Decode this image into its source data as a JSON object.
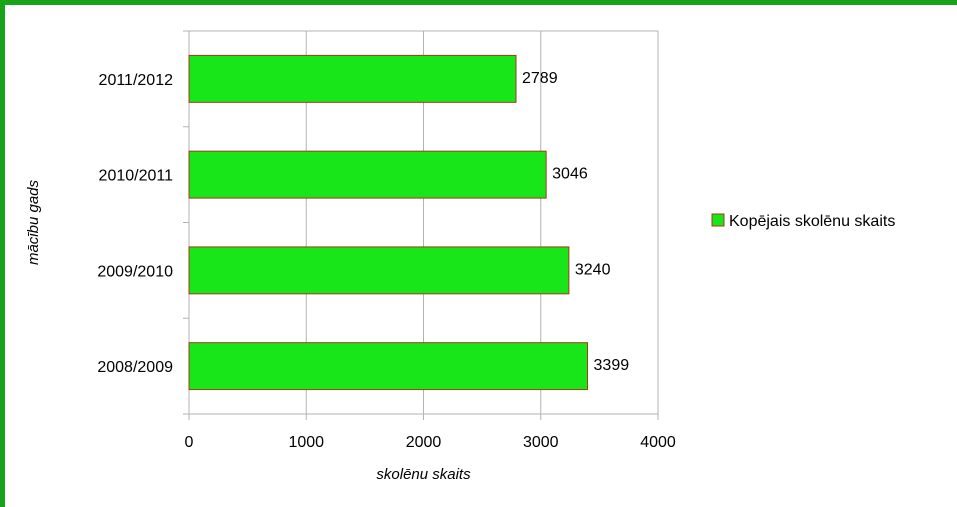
{
  "chart_data": {
    "type": "bar",
    "orientation": "horizontal",
    "categories": [
      "2011/2012",
      "2010/2011",
      "2009/2010",
      "2008/2009"
    ],
    "series": [
      {
        "name": "Kopējais skolēnu skaits",
        "values": [
          2789,
          3046,
          3240,
          3399
        ]
      }
    ],
    "xlabel": "skolēnu skaits",
    "ylabel": "mācību gads",
    "xlim": [
      0,
      4000
    ],
    "xticks": [
      0,
      1000,
      2000,
      3000,
      4000
    ],
    "grid": true,
    "legend": "right",
    "colors": {
      "bar": "#19e619",
      "bar_border": "#a33a1a",
      "frame": "#19a319",
      "grid": "#b3b3b3",
      "axis": "#b3b3b3"
    }
  }
}
